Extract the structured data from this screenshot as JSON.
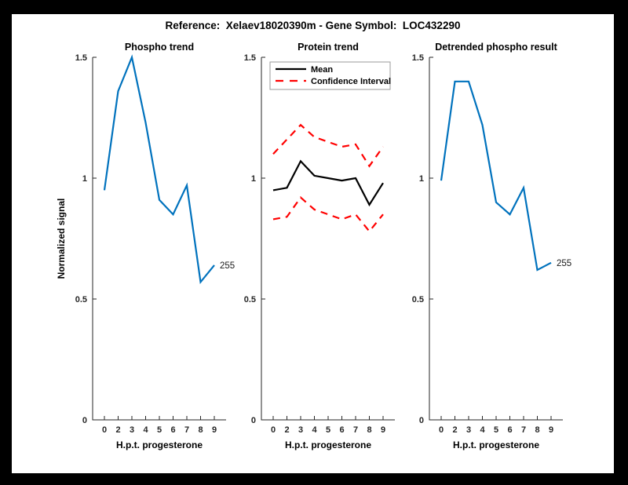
{
  "figure": {
    "title": "Reference:  Xelaev18020390m - Gene Symbol:  LOC432290",
    "background_color": "#000000",
    "canvas_color": "#FFFFFF",
    "accent_blue": "#0072BD",
    "accent_red": "#FF0000"
  },
  "chart_data": [
    {
      "type": "line",
      "title": "Phospho trend",
      "xlabel": "H.p.t. progesterone",
      "ylabel": "Normalized signal",
      "x_tick_labels": [
        "0",
        "2",
        "3",
        "4",
        "5",
        "6",
        "7",
        "8",
        "9"
      ],
      "y_ticks": [
        0,
        0.5,
        1,
        1.5
      ],
      "y_tick_labels": [
        "0",
        "0.5",
        "1",
        "1.5"
      ],
      "ylim": [
        0,
        1.5
      ],
      "grid": false,
      "series": [
        {
          "name": "phospho-signal",
          "color": "#0072BD",
          "style": "solid",
          "values": [
            0.95,
            1.36,
            1.5,
            1.23,
            0.91,
            0.85,
            0.97,
            0.57,
            0.64
          ]
        }
      ],
      "end_label": "255"
    },
    {
      "type": "line",
      "title": "Protein trend",
      "xlabel": "H.p.t. progesterone",
      "ylabel": "",
      "x_tick_labels": [
        "0",
        "2",
        "3",
        "4",
        "5",
        "6",
        "7",
        "8",
        "9"
      ],
      "y_ticks": [
        0,
        0.5,
        1,
        1.5
      ],
      "y_tick_labels": [
        "0",
        "0.5",
        "1",
        "1.5"
      ],
      "ylim": [
        0,
        1.5
      ],
      "grid": false,
      "legend": {
        "position": "northwest-inside",
        "entries": [
          {
            "label": "Mean",
            "color": "#000000",
            "style": "solid"
          },
          {
            "label": "Confidence Interval",
            "color": "#FF0000",
            "style": "dashed"
          }
        ]
      },
      "series": [
        {
          "name": "mean",
          "color": "#000000",
          "style": "solid",
          "values": [
            0.95,
            0.96,
            1.07,
            1.01,
            1.0,
            0.99,
            1.0,
            0.89,
            0.98
          ]
        },
        {
          "name": "ci-upper",
          "color": "#FF0000",
          "style": "dashed",
          "values": [
            1.1,
            1.16,
            1.22,
            1.17,
            1.15,
            1.13,
            1.14,
            1.05,
            1.13
          ]
        },
        {
          "name": "ci-lower",
          "color": "#FF0000",
          "style": "dashed",
          "values": [
            0.83,
            0.84,
            0.92,
            0.87,
            0.85,
            0.83,
            0.85,
            0.78,
            0.85
          ]
        }
      ]
    },
    {
      "type": "line",
      "title": "Detrended phospho result",
      "xlabel": "H.p.t. progesterone",
      "ylabel": "",
      "x_tick_labels": [
        "0",
        "2",
        "3",
        "4",
        "5",
        "6",
        "7",
        "8",
        "9"
      ],
      "y_ticks": [
        0,
        0.5,
        1,
        1.5
      ],
      "y_tick_labels": [
        "0",
        "0.5",
        "1",
        "1.5"
      ],
      "ylim": [
        0,
        1.5
      ],
      "grid": false,
      "series": [
        {
          "name": "detrended-phospho",
          "color": "#0072BD",
          "style": "solid",
          "values": [
            0.99,
            1.4,
            1.4,
            1.22,
            0.9,
            0.85,
            0.96,
            0.62,
            0.65
          ]
        }
      ],
      "end_label": "255"
    }
  ]
}
